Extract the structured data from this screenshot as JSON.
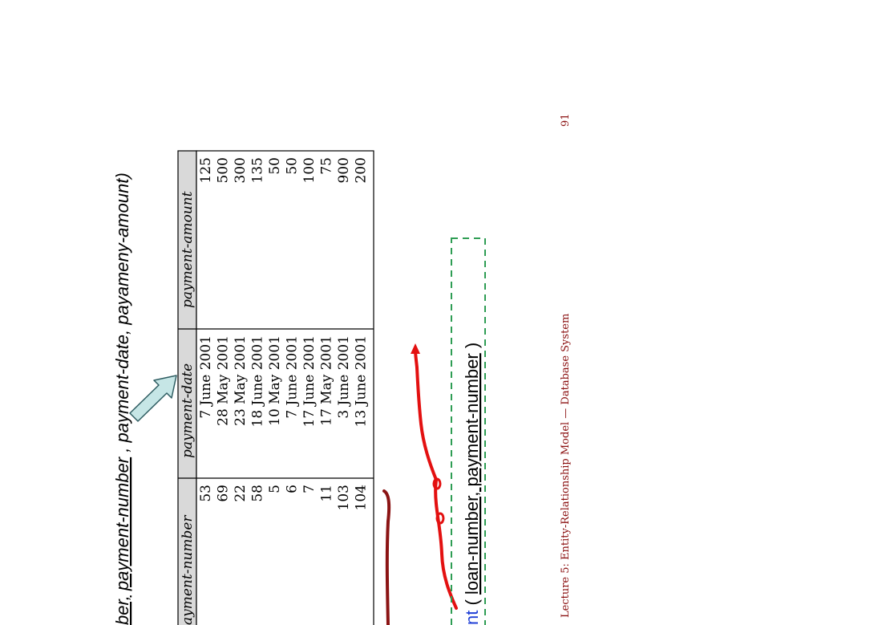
{
  "slide": {
    "schema_prefix": "ber,",
    "schema_payment_number": "payment-number",
    "schema_rest": ", payment-date, payameny-amount)",
    "relation_suffix": "nt",
    "relation_open": " (",
    "relation_key": "loan-number, payment-number",
    "relation_close": " )",
    "footer": "Lecture 5: Entity-Relationship Model — Database System",
    "page_number": "91"
  },
  "table": {
    "columns": [
      "ayment-number",
      "payment-date",
      "payment-amount"
    ],
    "rows": [
      [
        "53",
        "7 June 2001",
        "125"
      ],
      [
        "69",
        "28 May 2001",
        "500"
      ],
      [
        "22",
        "23 May 2001",
        "300"
      ],
      [
        "58",
        "18 June 2001",
        "135"
      ],
      [
        "5",
        "10 May 2001",
        "50"
      ],
      [
        "6",
        "7 June 2001",
        "50"
      ],
      [
        "7",
        "17 June 2001",
        "100"
      ],
      [
        "11",
        "17 May 2001",
        "75"
      ],
      [
        "103",
        "3 June 2001",
        "900"
      ],
      [
        "104",
        "13 June 2001",
        "200"
      ]
    ]
  },
  "colors": {
    "header_fill": "#d9d9d9",
    "arrow_fill": "#c6e6e6",
    "arrow_stroke": "#2f5d62",
    "relation_blue": "#1f3fd6",
    "dashed_box": "#2e9d54",
    "annotation_red": "#e31010",
    "annotation_dark_red": "#8b1414",
    "footer_red": "#8b1010"
  }
}
